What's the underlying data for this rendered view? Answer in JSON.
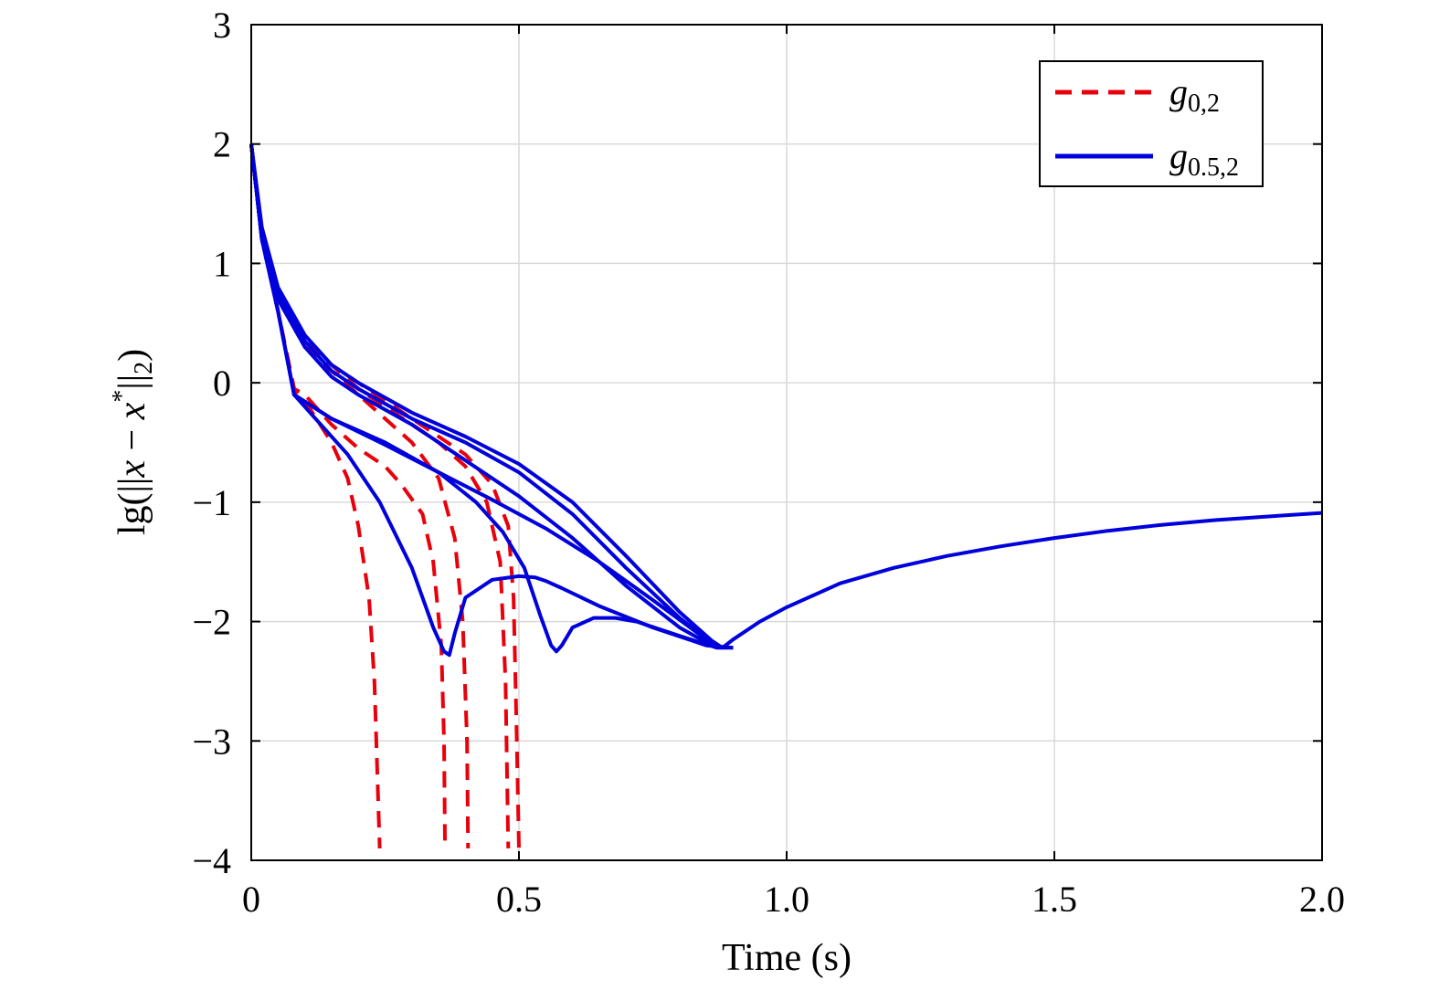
{
  "chart_data": {
    "type": "line",
    "xlabel": "Time (s)",
    "ylabel": "lg(||x − x*||2)",
    "ylabel_parts": {
      "prefix": "lg(||",
      "x": "x",
      "minus": " − ",
      "xstar": "x",
      "star": "*",
      "close": "||",
      "sub": "2",
      "end": ")"
    },
    "xlim": [
      0,
      2
    ],
    "ylim": [
      -4,
      3
    ],
    "xticks": [
      0,
      0.5,
      1.0,
      1.5,
      2.0
    ],
    "xtick_labels": [
      "0",
      "0.5",
      "1.0",
      "1.5",
      "2.0"
    ],
    "yticks": [
      3,
      2,
      1,
      0,
      -1,
      -2,
      -3,
      -4
    ],
    "ytick_labels": [
      "3",
      "2",
      "1",
      "0",
      "−1",
      "−2",
      "−3",
      "−4"
    ],
    "grid": true,
    "legend_position": "top-right",
    "colors": {
      "g02": "#e8000b",
      "g052": "#0000dd",
      "grid": "#d9d9d9"
    },
    "legend": [
      {
        "name": "g",
        "sub": "0,2",
        "style": "dashed",
        "color": "#e8000b"
      },
      {
        "name": "g",
        "sub": "0.5,2",
        "style": "solid",
        "color": "#0000dd"
      }
    ],
    "series": [
      {
        "group": "g02",
        "style": "dashed",
        "x": [
          0,
          0.02,
          0.05,
          0.08,
          0.1,
          0.15,
          0.18,
          0.2,
          0.22,
          0.23,
          0.235,
          0.24
        ],
        "y": [
          2.0,
          1.2,
          0.6,
          -0.05,
          -0.15,
          -0.5,
          -0.8,
          -1.2,
          -1.8,
          -2.5,
          -3.2,
          -3.9
        ]
      },
      {
        "group": "g02",
        "style": "dashed",
        "x": [
          0,
          0.02,
          0.05,
          0.08,
          0.1,
          0.15,
          0.2,
          0.25,
          0.28,
          0.32,
          0.34,
          0.355,
          0.36,
          0.362
        ],
        "y": [
          2.0,
          1.2,
          0.6,
          -0.05,
          -0.1,
          -0.35,
          -0.55,
          -0.7,
          -0.85,
          -1.1,
          -1.5,
          -2.2,
          -3.0,
          -3.9
        ]
      },
      {
        "group": "g02",
        "style": "dashed",
        "x": [
          0,
          0.02,
          0.05,
          0.1,
          0.15,
          0.2,
          0.25,
          0.3,
          0.35,
          0.38,
          0.395,
          0.403,
          0.405
        ],
        "y": [
          2.0,
          1.2,
          0.7,
          0.3,
          0.1,
          -0.1,
          -0.3,
          -0.5,
          -0.8,
          -1.3,
          -2.0,
          -3.0,
          -3.9
        ]
      },
      {
        "group": "g02",
        "style": "dashed",
        "x": [
          0,
          0.02,
          0.05,
          0.1,
          0.15,
          0.2,
          0.25,
          0.3,
          0.35,
          0.4,
          0.44,
          0.465,
          0.475,
          0.48
        ],
        "y": [
          2.0,
          1.2,
          0.7,
          0.35,
          0.15,
          -0.05,
          -0.2,
          -0.35,
          -0.5,
          -0.7,
          -1.0,
          -1.5,
          -2.5,
          -3.9
        ]
      },
      {
        "group": "g02",
        "style": "dashed",
        "x": [
          0,
          0.02,
          0.05,
          0.1,
          0.15,
          0.2,
          0.25,
          0.3,
          0.35,
          0.4,
          0.45,
          0.48,
          0.49,
          0.495,
          0.5
        ],
        "y": [
          2.0,
          1.2,
          0.7,
          0.35,
          0.15,
          0.0,
          -0.15,
          -0.3,
          -0.45,
          -0.6,
          -0.85,
          -1.2,
          -1.8,
          -2.8,
          -3.9
        ]
      },
      {
        "group": "g052",
        "style": "solid",
        "x": [
          0,
          0.02,
          0.05,
          0.08,
          0.12,
          0.18,
          0.24,
          0.3,
          0.34,
          0.36,
          0.37,
          0.38,
          0.4,
          0.45,
          0.5,
          0.53,
          0.55,
          0.58,
          0.65,
          0.75,
          0.85,
          0.9
        ],
        "y": [
          2.0,
          1.2,
          0.6,
          -0.1,
          -0.3,
          -0.6,
          -1.0,
          -1.55,
          -2.05,
          -2.25,
          -2.28,
          -2.1,
          -1.8,
          -1.65,
          -1.62,
          -1.63,
          -1.66,
          -1.72,
          -1.87,
          -2.05,
          -2.2,
          -2.22
        ]
      },
      {
        "group": "g052",
        "style": "solid",
        "x": [
          0,
          0.02,
          0.05,
          0.08,
          0.15,
          0.25,
          0.35,
          0.42,
          0.47,
          0.51,
          0.54,
          0.56,
          0.57,
          0.58,
          0.6,
          0.64,
          0.68,
          0.72,
          0.8,
          0.87,
          0.9
        ],
        "y": [
          2.0,
          1.2,
          0.6,
          -0.1,
          -0.3,
          -0.5,
          -0.75,
          -1.0,
          -1.25,
          -1.55,
          -1.95,
          -2.2,
          -2.25,
          -2.2,
          -2.05,
          -1.97,
          -1.97,
          -2.0,
          -2.12,
          -2.22,
          -2.22
        ]
      },
      {
        "group": "g052",
        "style": "solid",
        "x": [
          0,
          0.02,
          0.05,
          0.08,
          0.15,
          0.25,
          0.35,
          0.45,
          0.55,
          0.65,
          0.75,
          0.85,
          0.88
        ],
        "y": [
          2.0,
          1.2,
          0.6,
          -0.1,
          -0.3,
          -0.52,
          -0.75,
          -0.98,
          -1.22,
          -1.5,
          -1.82,
          -2.15,
          -2.22
        ]
      },
      {
        "group": "g052",
        "style": "solid",
        "x": [
          0,
          0.02,
          0.05,
          0.1,
          0.15,
          0.2,
          0.3,
          0.4,
          0.5,
          0.6,
          0.7,
          0.8,
          0.86,
          0.88
        ],
        "y": [
          2.0,
          1.2,
          0.7,
          0.3,
          0.05,
          -0.1,
          -0.35,
          -0.65,
          -0.95,
          -1.3,
          -1.7,
          -2.05,
          -2.2,
          -2.22
        ]
      },
      {
        "group": "g052",
        "style": "solid",
        "x": [
          0,
          0.02,
          0.05,
          0.1,
          0.15,
          0.2,
          0.3,
          0.4,
          0.5,
          0.6,
          0.7,
          0.8,
          0.86,
          0.88
        ],
        "y": [
          2.0,
          1.25,
          0.75,
          0.35,
          0.1,
          -0.05,
          -0.3,
          -0.5,
          -0.75,
          -1.1,
          -1.55,
          -1.97,
          -2.18,
          -2.22
        ]
      },
      {
        "group": "g052",
        "style": "solid",
        "x": [
          0,
          0.02,
          0.05,
          0.1,
          0.15,
          0.2,
          0.3,
          0.4,
          0.5,
          0.6,
          0.7,
          0.8,
          0.86,
          0.88
        ],
        "y": [
          2.0,
          1.3,
          0.8,
          0.4,
          0.15,
          0.0,
          -0.25,
          -0.45,
          -0.68,
          -1.0,
          -1.45,
          -1.92,
          -2.16,
          -2.22
        ]
      },
      {
        "group": "g052",
        "style": "solid",
        "x": [
          0.88,
          0.9,
          0.95,
          1.0,
          1.1,
          1.2,
          1.3,
          1.4,
          1.5,
          1.6,
          1.7,
          1.8,
          1.9,
          2.0
        ],
        "y": [
          -2.22,
          -2.15,
          -2.0,
          -1.88,
          -1.68,
          -1.55,
          -1.45,
          -1.37,
          -1.3,
          -1.24,
          -1.19,
          -1.15,
          -1.12,
          -1.09
        ]
      }
    ]
  }
}
